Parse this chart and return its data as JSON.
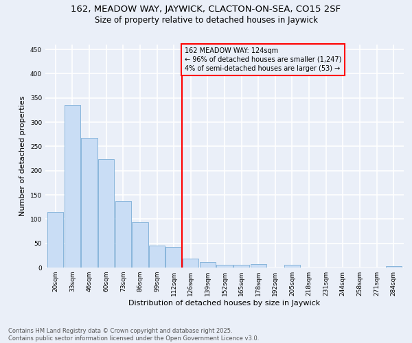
{
  "title": "162, MEADOW WAY, JAYWICK, CLACTON-ON-SEA, CO15 2SF",
  "subtitle": "Size of property relative to detached houses in Jaywick",
  "xlabel": "Distribution of detached houses by size in Jaywick",
  "ylabel": "Number of detached properties",
  "categories": [
    "20sqm",
    "33sqm",
    "46sqm",
    "60sqm",
    "73sqm",
    "86sqm",
    "99sqm",
    "112sqm",
    "126sqm",
    "139sqm",
    "152sqm",
    "165sqm",
    "178sqm",
    "192sqm",
    "205sqm",
    "218sqm",
    "231sqm",
    "244sqm",
    "258sqm",
    "271sqm",
    "284sqm"
  ],
  "values": [
    115,
    335,
    268,
    223,
    138,
    93,
    46,
    42,
    18,
    11,
    6,
    6,
    7,
    0,
    5,
    0,
    0,
    0,
    0,
    0,
    3
  ],
  "bar_color": "#c9ddf5",
  "bar_edge_color": "#7badd6",
  "bg_color": "#eaeff8",
  "grid_color": "#ffffff",
  "vline_color": "red",
  "annotation_text": "162 MEADOW WAY: 124sqm\n← 96% of detached houses are smaller (1,247)\n4% of semi-detached houses are larger (53) →",
  "annotation_box_color": "red",
  "ylim": [
    0,
    460
  ],
  "yticks": [
    0,
    50,
    100,
    150,
    200,
    250,
    300,
    350,
    400,
    450
  ],
  "footer": "Contains HM Land Registry data © Crown copyright and database right 2025.\nContains public sector information licensed under the Open Government Licence v3.0.",
  "title_fontsize": 9.5,
  "subtitle_fontsize": 8.5,
  "xlabel_fontsize": 8,
  "ylabel_fontsize": 8,
  "tick_fontsize": 6.5,
  "footer_fontsize": 6,
  "annot_fontsize": 7
}
